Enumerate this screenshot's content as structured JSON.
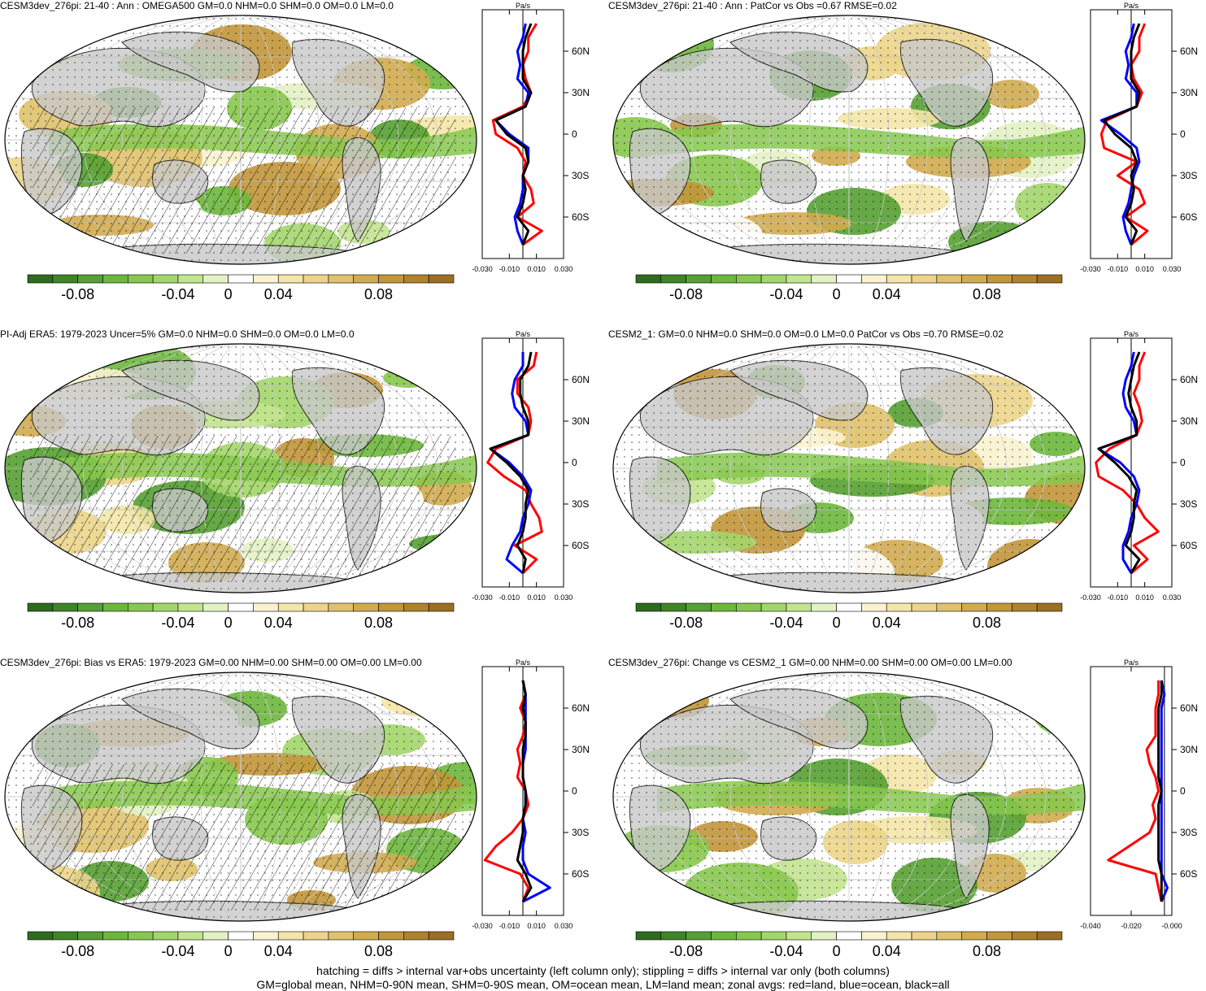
{
  "colors": {
    "land_gray": "#c8c8c8",
    "ocean_white": "#ffffff",
    "zonal_land": "#ff0000",
    "zonal_ocean": "#0000ff",
    "zonal_all": "#000000",
    "colorbar": [
      "#2f6b1c",
      "#3f8526",
      "#55a032",
      "#6db73d",
      "#86c84d",
      "#a3d66a",
      "#c3e48f",
      "#e3f2c4",
      "#ffffff",
      "#fbf3cf",
      "#f4e5a8",
      "#ecd58a",
      "#e0c26c",
      "#d2ab4f",
      "#c2963a",
      "#b0822c",
      "#9c6f22"
    ]
  },
  "colorbar_labels": [
    "-0.08",
    "-0.04",
    "0",
    "0.04",
    "0.08"
  ],
  "footer": {
    "line1": "hatching = diffs > internal var+obs uncertainty (left column only); stippling = diffs > internal var only (both columns)",
    "line2": "GM=global mean, NHM=0-90N mean, SHM=0-90S mean, OM=ocean mean, LM=land mean; zonal avgs: red=land, blue=ocean, black=all"
  },
  "panels": [
    {
      "title": "CESM3dev_276pi: 21-40 : Ann : OMEGA500 GM=0.0 NHM=0.0 SHM=0.0 OM=0.0 LM=0.0",
      "hatched": true,
      "zonal_unit": "Pa/s",
      "zonal_xticks": [
        "-0.030",
        "-0.010",
        "0.010",
        "0.030"
      ],
      "lat_labels": [
        "60N",
        "30N",
        "0",
        "30S",
        "60S"
      ],
      "chart_data": {
        "type": "line",
        "xlim": [
          -0.03,
          0.03
        ],
        "ylim": [
          -90,
          90
        ],
        "lat": [
          -80,
          -70,
          -60,
          -50,
          -40,
          -30,
          -20,
          -10,
          0,
          10,
          20,
          30,
          40,
          50,
          60,
          70,
          80
        ],
        "series": [
          {
            "name": "land",
            "values": [
              0.0,
              0.014,
              -0.004,
              0.008,
              0.006,
              0.0,
              0.002,
              -0.004,
              -0.02,
              -0.022,
              0.0,
              0.006,
              0.002,
              0.0,
              0.004,
              0.004,
              0.01
            ]
          },
          {
            "name": "ocean",
            "values": [
              0.0,
              -0.004,
              -0.006,
              -0.002,
              0.0,
              0.0,
              0.004,
              0.004,
              -0.01,
              -0.02,
              0.002,
              0.004,
              -0.004,
              -0.002,
              -0.004,
              0.0,
              0.002
            ]
          },
          {
            "name": "all",
            "values": [
              0.0,
              0.004,
              -0.004,
              0.0,
              0.002,
              0.0,
              0.004,
              0.002,
              -0.012,
              -0.02,
              0.002,
              0.006,
              0.0,
              0.0,
              0.0,
              0.002,
              0.006
            ]
          }
        ]
      }
    },
    {
      "title": "CESM3dev_276pi: 21-40 : Ann : PatCor vs Obs =0.67 RMSE=0.02",
      "hatched": false,
      "zonal_unit": "Pa/s",
      "zonal_xticks": [
        "-0.030",
        "-0.010",
        "0.010",
        "0.030"
      ],
      "lat_labels": [
        "60N",
        "30N",
        "0",
        "30S",
        "60S"
      ],
      "chart_data": {
        "type": "line",
        "xlim": [
          -0.03,
          0.03
        ],
        "ylim": [
          -90,
          90
        ],
        "lat": [
          -80,
          -70,
          -60,
          -50,
          -40,
          -30,
          -20,
          -10,
          0,
          10,
          20,
          30,
          40,
          50,
          60,
          70,
          80
        ],
        "series": [
          {
            "name": "land",
            "values": [
              0.0,
              0.012,
              -0.004,
              0.01,
              0.006,
              -0.01,
              0.004,
              -0.02,
              -0.022,
              -0.018,
              0.004,
              0.008,
              0.002,
              0.0,
              0.006,
              0.006,
              0.01
            ]
          },
          {
            "name": "ocean",
            "values": [
              0.0,
              -0.004,
              -0.006,
              -0.002,
              0.0,
              0.002,
              0.006,
              0.004,
              -0.008,
              -0.022,
              0.004,
              0.004,
              -0.004,
              -0.002,
              -0.004,
              0.0,
              0.002
            ]
          },
          {
            "name": "all",
            "values": [
              0.0,
              0.004,
              -0.004,
              0.0,
              0.002,
              0.0,
              0.004,
              0.0,
              -0.012,
              -0.02,
              0.004,
              0.006,
              0.0,
              0.0,
              0.0,
              0.002,
              0.006
            ]
          }
        ]
      }
    },
    {
      "title": "PI-Adj ERA5: 1979-2023 Uncer=5% GM=0.0 NHM=0.0 SHM=0.0 OM=0.0 LM=0.0",
      "hatched": true,
      "zonal_unit": "Pa/s",
      "zonal_xticks": [
        "-0.030",
        "-0.010",
        "0.010",
        "0.030"
      ],
      "lat_labels": [
        "60N",
        "30N",
        "0",
        "30S",
        "60S"
      ],
      "chart_data": {
        "type": "line",
        "xlim": [
          -0.03,
          0.03
        ],
        "ylim": [
          -90,
          90
        ],
        "lat": [
          -80,
          -70,
          -60,
          -50,
          -40,
          -30,
          -20,
          -10,
          0,
          10,
          20,
          30,
          40,
          50,
          60,
          70,
          80
        ],
        "series": [
          {
            "name": "land",
            "values": [
              0.0,
              0.01,
              -0.006,
              0.014,
              0.012,
              0.006,
              0.002,
              -0.014,
              -0.026,
              -0.02,
              0.004,
              0.006,
              0.004,
              -0.004,
              -0.004,
              0.008,
              0.01
            ]
          },
          {
            "name": "ocean",
            "values": [
              0.0,
              -0.012,
              -0.008,
              -0.002,
              0.0,
              0.004,
              0.006,
              0.0,
              -0.01,
              -0.024,
              0.004,
              0.002,
              -0.006,
              -0.008,
              -0.006,
              0.0,
              0.0
            ]
          },
          {
            "name": "all",
            "values": [
              0.0,
              0.002,
              -0.004,
              0.0,
              0.002,
              0.002,
              0.004,
              -0.002,
              -0.012,
              -0.024,
              0.004,
              0.004,
              0.0,
              -0.002,
              -0.002,
              0.004,
              0.006
            ]
          }
        ]
      }
    },
    {
      "title": "CESM2_1: GM=0.0 NHM=0.0 SHM=0.0 OM=0.0 LM=0.0 PatCor vs Obs =0.70 RMSE=0.02",
      "hatched": false,
      "zonal_unit": "Pa/s",
      "zonal_xticks": [
        "-0.030",
        "-0.010",
        "0.010",
        "0.030"
      ],
      "lat_labels": [
        "60N",
        "30N",
        "0",
        "30S",
        "60S"
      ],
      "chart_data": {
        "type": "line",
        "xlim": [
          -0.03,
          0.03
        ],
        "ylim": [
          -90,
          90
        ],
        "lat": [
          -80,
          -70,
          -60,
          -50,
          -40,
          -30,
          -20,
          -10,
          0,
          10,
          20,
          30,
          40,
          50,
          60,
          70,
          80
        ],
        "series": [
          {
            "name": "land",
            "values": [
              0.0,
              0.012,
              0.002,
              0.02,
              0.01,
              0.004,
              -0.006,
              -0.024,
              -0.026,
              -0.016,
              0.004,
              0.008,
              0.006,
              0.002,
              0.006,
              0.006,
              0.01
            ]
          },
          {
            "name": "ocean",
            "values": [
              0.0,
              -0.006,
              -0.006,
              -0.002,
              0.0,
              0.004,
              0.006,
              0.002,
              -0.008,
              -0.024,
              0.004,
              0.002,
              -0.004,
              -0.006,
              -0.004,
              0.0,
              0.002
            ]
          },
          {
            "name": "all",
            "values": [
              0.0,
              0.006,
              -0.004,
              0.0,
              0.002,
              0.002,
              0.004,
              -0.002,
              -0.012,
              -0.024,
              0.004,
              0.004,
              0.0,
              -0.002,
              0.0,
              0.002,
              0.006
            ]
          }
        ]
      }
    },
    {
      "title": "CESM3dev_276pi: Bias vs ERA5: 1979-2023 GM=0.00 NHM=0.00 SHM=0.00 OM=0.00 LM=0.00",
      "hatched": true,
      "zonal_unit": "Pa/s",
      "zonal_xticks": [
        "-0.030",
        "-0.010",
        "0.010",
        "0.030"
      ],
      "lat_labels": [
        "60N",
        "30N",
        "0",
        "30S",
        "60S"
      ],
      "chart_data": {
        "type": "line",
        "xlim": [
          -0.03,
          0.03
        ],
        "ylim": [
          -90,
          90
        ],
        "lat": [
          -80,
          -70,
          -60,
          -50,
          -40,
          -30,
          -20,
          -10,
          0,
          10,
          20,
          30,
          40,
          50,
          60,
          70,
          80
        ],
        "series": [
          {
            "name": "land",
            "values": [
              0.0,
              0.004,
              -0.002,
              -0.028,
              -0.02,
              -0.008,
              0.0,
              0.004,
              0.002,
              -0.004,
              -0.002,
              -0.004,
              0.0,
              0.002,
              -0.002,
              0.002,
              0.0
            ]
          },
          {
            "name": "ocean",
            "values": [
              0.0,
              0.02,
              0.004,
              0.0,
              0.0,
              0.002,
              0.0,
              0.002,
              0.002,
              0.0,
              0.0,
              0.002,
              0.002,
              0.002,
              0.002,
              0.002,
              0.0
            ]
          },
          {
            "name": "all",
            "values": [
              0.0,
              0.006,
              0.002,
              -0.004,
              -0.002,
              0.0,
              0.0,
              0.002,
              0.002,
              0.0,
              0.0,
              0.0,
              0.002,
              0.002,
              0.0,
              0.002,
              0.0
            ]
          }
        ]
      }
    },
    {
      "title": "CESM3dev_276pi: Change vs CESM2_1 GM=0.00 NHM=0.00 SHM=0.00 OM=0.00 LM=0.00",
      "hatched": false,
      "zonal_unit": "Pa/s",
      "zonal_xticks": [
        "-0.040",
        "-0.020",
        "-0.000"
      ],
      "lat_labels": [
        "60N",
        "30N",
        "0",
        "30S",
        "60S"
      ],
      "chart_data": {
        "type": "line",
        "xlim": [
          -0.05,
          0.005
        ],
        "ylim": [
          -90,
          90
        ],
        "lat": [
          -80,
          -70,
          -60,
          -50,
          -40,
          -30,
          -20,
          -10,
          0,
          10,
          20,
          30,
          40,
          50,
          60,
          70,
          80
        ],
        "series": [
          {
            "name": "land",
            "values": [
              -0.002,
              -0.004,
              -0.006,
              -0.038,
              -0.024,
              -0.01,
              -0.006,
              -0.008,
              -0.004,
              -0.006,
              -0.01,
              -0.012,
              -0.006,
              -0.006,
              -0.006,
              -0.004,
              -0.004
            ]
          },
          {
            "name": "ocean",
            "values": [
              -0.002,
              0.002,
              -0.002,
              -0.002,
              -0.002,
              -0.002,
              -0.002,
              -0.002,
              -0.002,
              -0.002,
              -0.002,
              -0.002,
              -0.002,
              -0.002,
              -0.002,
              0.0,
              -0.002
            ]
          },
          {
            "name": "all",
            "values": [
              -0.002,
              -0.002,
              -0.002,
              -0.004,
              -0.004,
              -0.004,
              -0.004,
              -0.004,
              -0.002,
              -0.004,
              -0.004,
              -0.004,
              -0.004,
              -0.004,
              -0.004,
              -0.002,
              -0.002
            ]
          }
        ]
      }
    }
  ]
}
